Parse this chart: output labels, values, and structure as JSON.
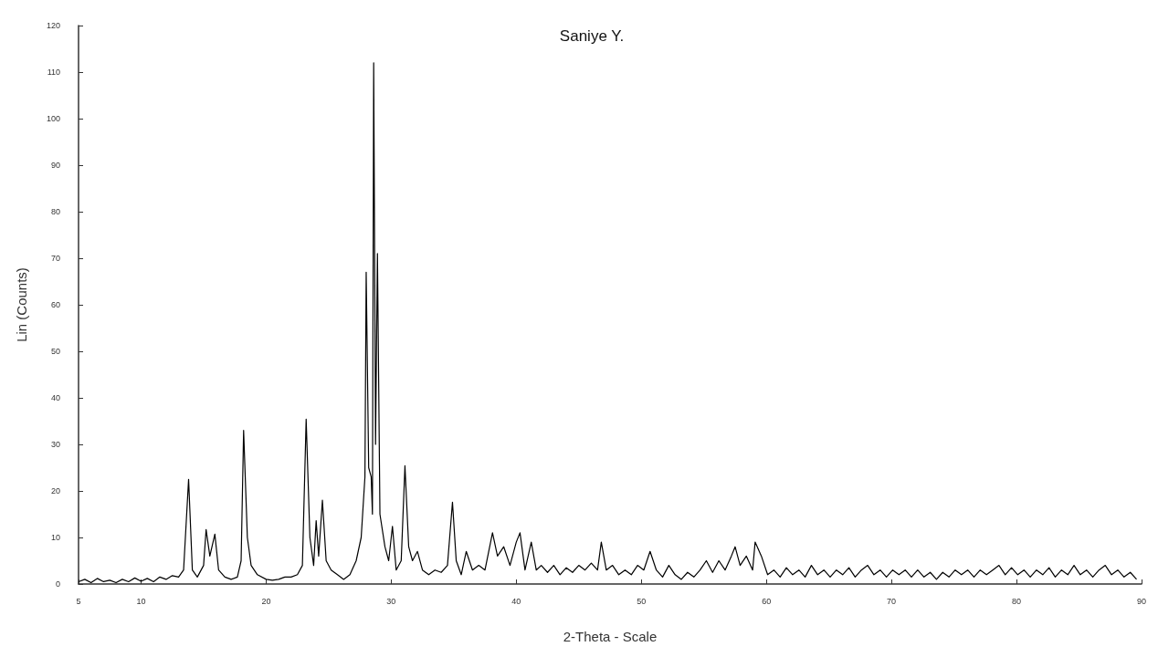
{
  "chart_data": {
    "type": "line",
    "title": "Saniye Y.",
    "xlabel": "2-Theta - Scale",
    "ylabel": "Lin (Counts)",
    "x": [
      5,
      5.5,
      6,
      6.5,
      7,
      7.5,
      8,
      8.5,
      9,
      9.5,
      10,
      10.5,
      11,
      11.5,
      12,
      12.5,
      13,
      13.4,
      13.8,
      14.1,
      14.5,
      15,
      15.2,
      15.5,
      15.9,
      16.2,
      16.7,
      17.2,
      17.7,
      18,
      18.2,
      18.5,
      18.8,
      19.3,
      20,
      20.5,
      21,
      21.5,
      22,
      22.5,
      22.9,
      23.2,
      23.5,
      23.8,
      24,
      24.2,
      24.5,
      24.8,
      25.2,
      25.7,
      26.2,
      26.7,
      27.2,
      27.6,
      27.9,
      28,
      28.2,
      28.4,
      28.5,
      28.6,
      28.75,
      28.9,
      29.1,
      29.5,
      29.8,
      30.1,
      30.4,
      30.8,
      31.1,
      31.4,
      31.7,
      32.1,
      32.5,
      33,
      33.5,
      34,
      34.5,
      34.9,
      35.2,
      35.6,
      36,
      36.5,
      37,
      37.5,
      38.1,
      38.5,
      39,
      39.5,
      40,
      40.3,
      40.7,
      41.2,
      41.6,
      42,
      42.5,
      43,
      43.5,
      44,
      44.5,
      45,
      45.5,
      46,
      46.5,
      46.8,
      47.2,
      47.7,
      48.2,
      48.7,
      49.2,
      49.7,
      50.2,
      50.7,
      51.2,
      51.7,
      52.2,
      52.7,
      53.2,
      53.7,
      54.2,
      54.7,
      55.2,
      55.7,
      56.2,
      56.7,
      57.2,
      57.5,
      57.9,
      58.4,
      58.9,
      59.1,
      59.6,
      60.1,
      60.6,
      61.1,
      61.6,
      62.1,
      62.6,
      63.1,
      63.6,
      64.1,
      64.6,
      65.1,
      65.6,
      66.1,
      66.6,
      67.1,
      67.6,
      68.1,
      68.6,
      69.1,
      69.6,
      70.1,
      70.6,
      71.1,
      71.6,
      72.1,
      72.6,
      73.1,
      73.6,
      74.1,
      74.6,
      75.1,
      75.6,
      76.1,
      76.6,
      77.1,
      77.6,
      78.1,
      78.6,
      79.1,
      79.6,
      80.1,
      80.6,
      81.1,
      81.6,
      82.1,
      82.6,
      83.1,
      83.6,
      84.1,
      84.6,
      85.1,
      85.6,
      86.1,
      86.6,
      87.1,
      87.6,
      88.1,
      88.6,
      89.1,
      89.6
    ],
    "series": [
      {
        "color": "#000000",
        "values": [
          0.5,
          1,
          0.3,
          1.2,
          0.5,
          0.8,
          0.3,
          1,
          0.5,
          1.3,
          0.6,
          1.2,
          0.5,
          1.5,
          1,
          1.8,
          1.5,
          3,
          22.5,
          3,
          1.5,
          4,
          11.7,
          6,
          10.7,
          3,
          1.5,
          1,
          1.5,
          5,
          33,
          10,
          4,
          2,
          1,
          0.8,
          1,
          1.5,
          1.5,
          2,
          4,
          35.4,
          10,
          4,
          13.6,
          6,
          18,
          5,
          3,
          2,
          1,
          2,
          5,
          10,
          23,
          67,
          25,
          23,
          15,
          112,
          30,
          71,
          15,
          8,
          5,
          12.4,
          3,
          5,
          25.4,
          8,
          5,
          7,
          3,
          2,
          3,
          2.5,
          4,
          17.6,
          5,
          2,
          7,
          3,
          4,
          3,
          11,
          6,
          8,
          4,
          9,
          11,
          3,
          9,
          3,
          4,
          2.5,
          4,
          2,
          3.5,
          2.5,
          4,
          3,
          4.5,
          3,
          9,
          3,
          4,
          2,
          3,
          2,
          4,
          3,
          7,
          3,
          1.5,
          4,
          2,
          1,
          2.5,
          1.5,
          3,
          5,
          2.5,
          5,
          3,
          6,
          8,
          4,
          6,
          3,
          9,
          6,
          2,
          3,
          1.5,
          3.5,
          2,
          3,
          1.5,
          4,
          2,
          3,
          1.5,
          3,
          2,
          3.5,
          1.5,
          3,
          4,
          2,
          3,
          1.5,
          3,
          2,
          3,
          1.5,
          3,
          1.5,
          2.5,
          1,
          2.5,
          1.5,
          3,
          2,
          3,
          1.5,
          3,
          2,
          3,
          4,
          2,
          3.5,
          2,
          3,
          1.5,
          3,
          2,
          3.5,
          1.5,
          3,
          2,
          4,
          2,
          3,
          1.5,
          3,
          4,
          2,
          3,
          1.5,
          2.5,
          1
        ]
      }
    ],
    "xlim": [
      5,
      90
    ],
    "xticks": [
      5,
      10,
      20,
      30,
      40,
      50,
      60,
      70,
      80,
      90
    ],
    "ylim": [
      0,
      120
    ],
    "yticks": [
      0,
      10,
      20,
      30,
      40,
      50,
      60,
      70,
      80,
      90,
      100,
      110,
      120
    ],
    "grid": false,
    "marker": "none",
    "line_style": "solid"
  }
}
